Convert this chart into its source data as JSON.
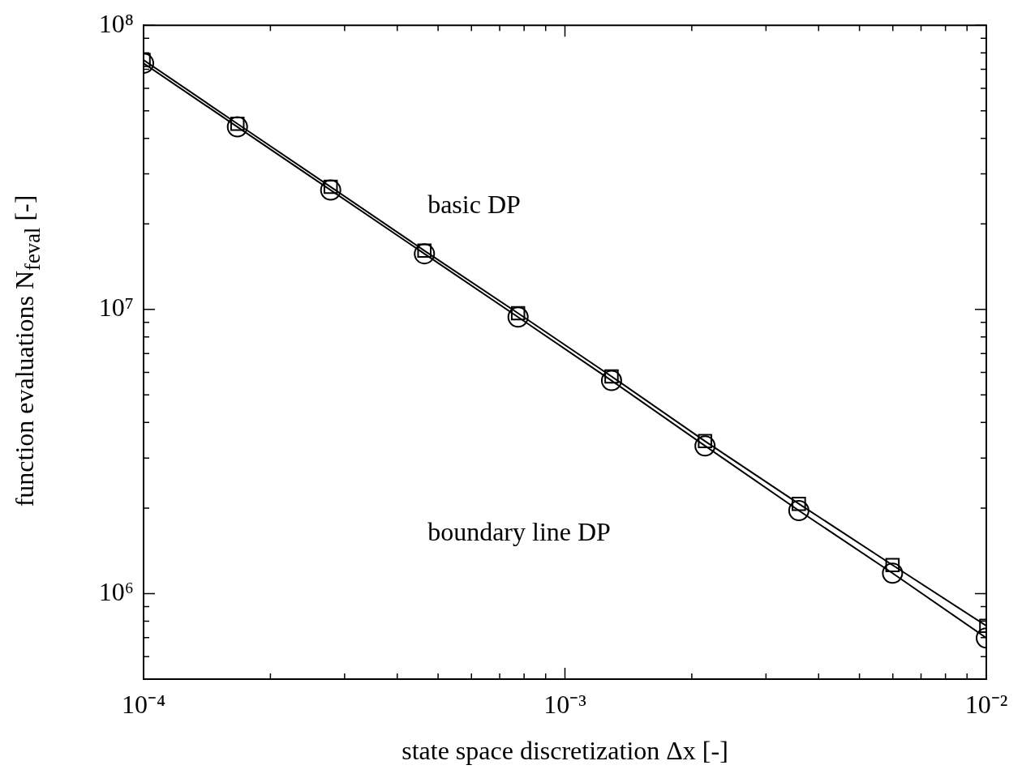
{
  "chart_data": {
    "type": "line",
    "xlabel": "state space discretization Δx [-]",
    "ylabel": "function evaluations N$_{feval}$ [-]",
    "log": "xy",
    "grid": false,
    "legend": false,
    "x": [
      0.0001,
      0.000167,
      0.000278,
      0.000464,
      0.000774,
      0.00129,
      0.00215,
      0.00359,
      0.00599,
      0.01
    ],
    "xlim": [
      0.0001,
      0.01
    ],
    "xticks": [
      {
        "value": 0.0001,
        "label": "10⁻⁴"
      },
      {
        "value": 0.0002,
        "label": null
      },
      {
        "value": 0.0003,
        "label": null
      },
      {
        "value": 0.0004,
        "label": null
      },
      {
        "value": 0.0005,
        "label": null
      },
      {
        "value": 0.0006,
        "label": null
      },
      {
        "value": 0.0007,
        "label": null
      },
      {
        "value": 0.0008,
        "label": null
      },
      {
        "value": 0.0009,
        "label": null
      },
      {
        "value": 0.001,
        "label": "10⁻³"
      },
      {
        "value": 0.002,
        "label": null
      },
      {
        "value": 0.003,
        "label": null
      },
      {
        "value": 0.004,
        "label": null
      },
      {
        "value": 0.005,
        "label": null
      },
      {
        "value": 0.006,
        "label": null
      },
      {
        "value": 0.007,
        "label": null
      },
      {
        "value": 0.008,
        "label": null
      },
      {
        "value": 0.009,
        "label": null
      },
      {
        "value": 0.01,
        "label": "10⁻²"
      }
    ],
    "ylim": [
      500000,
      100000000
    ],
    "yticks": [
      {
        "value": 500000,
        "label": null
      },
      {
        "value": 600000,
        "label": null
      },
      {
        "value": 700000,
        "label": null
      },
      {
        "value": 800000,
        "label": null
      },
      {
        "value": 900000,
        "label": null
      },
      {
        "value": 1000000,
        "label": "10⁶"
      },
      {
        "value": 2000000,
        "label": null
      },
      {
        "value": 3000000,
        "label": null
      },
      {
        "value": 4000000,
        "label": null
      },
      {
        "value": 5000000,
        "label": null
      },
      {
        "value": 6000000,
        "label": null
      },
      {
        "value": 7000000,
        "label": null
      },
      {
        "value": 8000000,
        "label": null
      },
      {
        "value": 9000000,
        "label": null
      },
      {
        "value": 10000000,
        "label": "10⁷"
      },
      {
        "value": 20000000,
        "label": null
      },
      {
        "value": 30000000,
        "label": null
      },
      {
        "value": 40000000,
        "label": null
      },
      {
        "value": 50000000,
        "label": null
      },
      {
        "value": 60000000,
        "label": null
      },
      {
        "value": 70000000,
        "label": null
      },
      {
        "value": 80000000,
        "label": null
      },
      {
        "value": 90000000,
        "label": null
      },
      {
        "value": 100000000,
        "label": "10⁸"
      }
    ],
    "annotations": [
      "basic DP",
      "boundary line DP"
    ],
    "series": [
      {
        "color": "#000000",
        "marker": "square",
        "line_style": "solid",
        "values": [
          75500000,
          45000000,
          27000000,
          16100000,
          9700000,
          5810000,
          3440000,
          2070000,
          1260000,
          770000
        ]
      },
      {
        "color": "#000000",
        "marker": "circle",
        "line_style": "solid",
        "values": [
          73500000,
          43900000,
          26300000,
          15700000,
          9400000,
          5620000,
          3310000,
          1960000,
          1180000,
          698000
        ]
      }
    ]
  }
}
